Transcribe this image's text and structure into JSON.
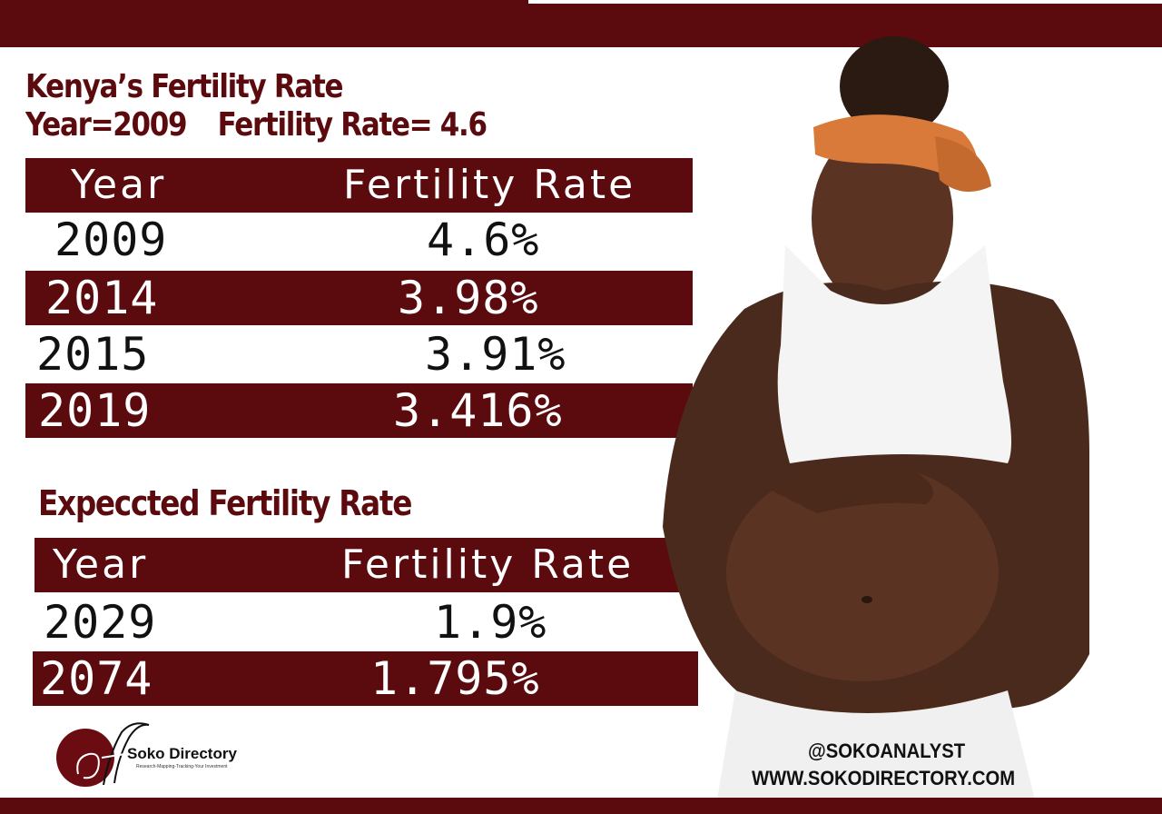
{
  "title_line1": "Kenya’s Fertility Rate",
  "title_line2_a": "Year=2009",
  "title_line2_b": "Fertility Rate= 4.6",
  "table1": {
    "header": {
      "year": "Year",
      "rate": "Fertility Rate"
    },
    "rows": [
      {
        "year": "2009",
        "rate": "4.6%"
      },
      {
        "year": "2014",
        "rate": "3.98%"
      },
      {
        "year": "2015",
        "rate": "3.91%"
      },
      {
        "year": "2019",
        "rate": "3.416%"
      }
    ]
  },
  "subtitle": "Expeccted Fertility Rate",
  "table2": {
    "header": {
      "year": "Year",
      "rate": "Fertility Rate"
    },
    "rows": [
      {
        "year": "2029",
        "rate": "1.9%"
      },
      {
        "year": "2074",
        "rate": "1.795%"
      }
    ]
  },
  "logo": {
    "name": "Soko Directory",
    "tagline": "Research-Mapping-Tracking-Your Investment"
  },
  "footer": {
    "handle": "@SOKOANALYST",
    "website": "WWW.SOKODIRECTORY.COM"
  },
  "colors": {
    "maroon": "#5b0a0e",
    "background": "#ffffff"
  }
}
